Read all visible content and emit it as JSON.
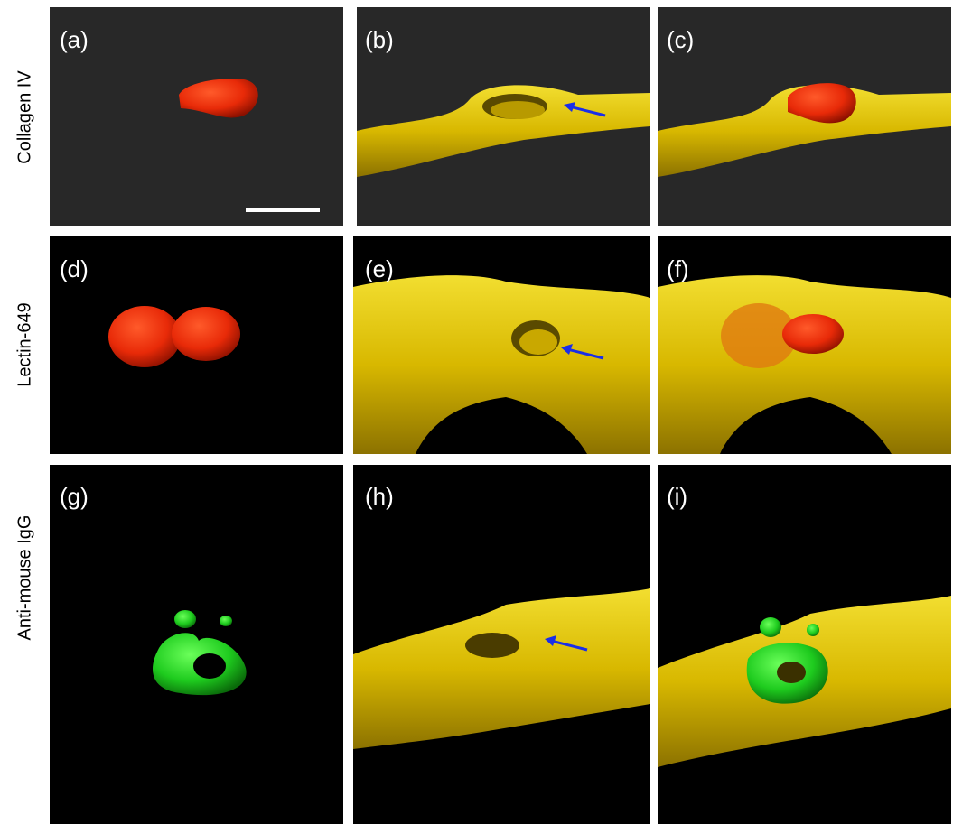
{
  "rows": [
    {
      "label": "Collagen IV",
      "panels": [
        "(a)",
        "(b)",
        "(c)"
      ]
    },
    {
      "label": "Lectin-649",
      "panels": [
        "(d)",
        "(e)",
        "(f)"
      ]
    },
    {
      "label": "Anti-mouse IgG",
      "panels": [
        "(g)",
        "(h)",
        "(i)"
      ]
    }
  ]
}
